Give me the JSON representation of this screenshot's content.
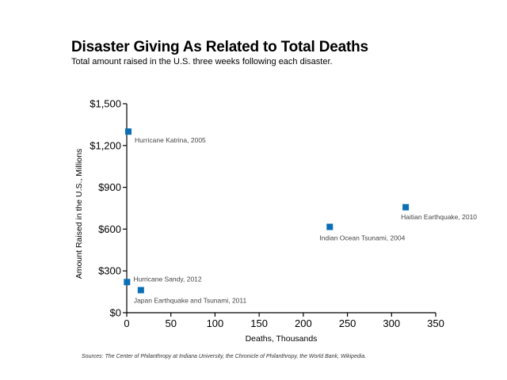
{
  "header": {
    "title": "Disaster Giving As Related to Total Deaths",
    "subtitle": "Total amount raised in the U.S. three weeks following each disaster."
  },
  "footer": {
    "sources": "Sources: The Center of Philanthropy at Indiana University, the Chronicle of Philanthropy, the World Bank, Wikipedia."
  },
  "chart_data": {
    "type": "scatter",
    "title": "Disaster Giving As Related to Total Deaths",
    "subtitle": "Total amount raised in the U.S. three weeks following each disaster.",
    "xlabel": "Deaths, Thousands",
    "ylabel": "Amount Raised in the U.S., Millions",
    "xlim": [
      0,
      350
    ],
    "ylim": [
      0,
      1500
    ],
    "x_ticks": [
      0,
      50,
      100,
      150,
      200,
      250,
      300,
      350
    ],
    "x_tick_labels": [
      "0",
      "50",
      "100",
      "150",
      "200",
      "250",
      "300",
      "350"
    ],
    "y_ticks": [
      0,
      300,
      600,
      900,
      1200,
      1500
    ],
    "y_tick_labels": [
      "$0",
      "$300",
      "$600",
      "$900",
      "$1,200",
      "$1,500"
    ],
    "grid": false,
    "marker_color": "#0a6fb5",
    "points": [
      {
        "label": "Hurricane Katrina, 2005",
        "x": 1.8,
        "y": 1300
      },
      {
        "label": "Haitian Earthquake, 2010",
        "x": 316,
        "y": 757
      },
      {
        "label": "Indian Ocean Tsunami, 2004",
        "x": 230,
        "y": 616
      },
      {
        "label": "Hurricane Sandy, 2012",
        "x": 0.3,
        "y": 220
      },
      {
        "label": "Japan Earthquake and Tsunami, 2011",
        "x": 16,
        "y": 162
      }
    ]
  }
}
